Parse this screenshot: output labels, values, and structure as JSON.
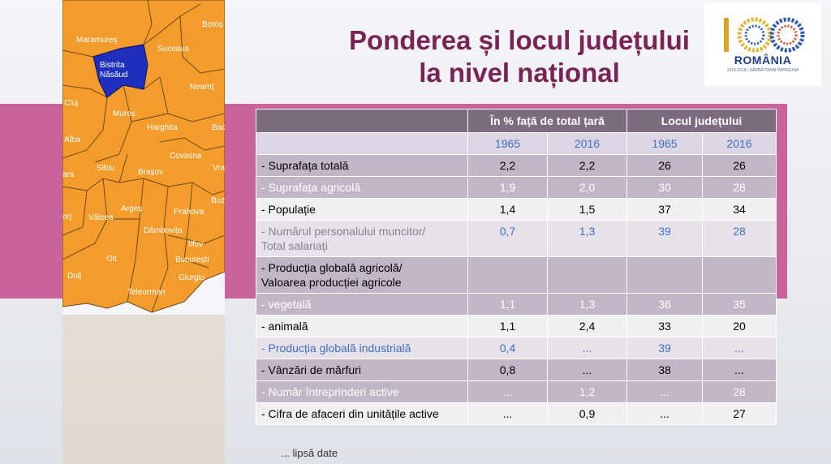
{
  "title": {
    "line1": "Ponderea și locul județului",
    "line2": "la nivel național"
  },
  "logo": {
    "number": "100",
    "country": "ROMÂNIA",
    "tagline": "1918-2018 | SĂRBĂTORIM ÎMPREUNĂ"
  },
  "map": {
    "highlight_label_1": "Bistrita",
    "highlight_label_2": "Năsăud",
    "labels": [
      "Botoș",
      "Maramureș",
      "Suceava",
      "Neamț",
      "Cluj",
      "Harghita",
      "Bac",
      "Mureș",
      "Alba",
      "Covasna",
      "Vra",
      "Sibiu",
      "Brașov",
      "ara",
      "Buz",
      "Argeș",
      "Prahova",
      "orj",
      "Vâlcea",
      "Dâmbovița",
      "Ilfov",
      "Olt",
      "București",
      "Giurgiu",
      "Dolj",
      "Teleorman"
    ],
    "fill_color": "#f39b2b",
    "highlight_color": "#1e2fbe"
  },
  "table": {
    "header": {
      "group1": "În % față de total țară",
      "group2": "Locul județului"
    },
    "years": [
      "1965",
      "2016",
      "1965",
      "2016"
    ],
    "rows": [
      {
        "label": "- Suprafața totală",
        "values": [
          "2,2",
          "2,2",
          "26",
          "26"
        ]
      },
      {
        "label": "- Suprafața agricolă",
        "values": [
          "1,9",
          "2,0",
          "30",
          "28"
        ]
      },
      {
        "label": "- Populație",
        "values": [
          "1,4",
          "1,5",
          "37",
          "34"
        ]
      },
      {
        "label1": "- Numărul personalului muncitor/",
        "label2": "Total salariați",
        "values": [
          "0,7",
          "1,3",
          "39",
          "28"
        ]
      },
      {
        "label1": "- Producția globală agricolă/",
        "label2": "Valoarea producției agricole",
        "values": [
          "",
          "",
          "",
          ""
        ]
      },
      {
        "label": "- vegetală",
        "values": [
          "1,1",
          "1,3",
          "36",
          "35"
        ]
      },
      {
        "label": "- animală",
        "values": [
          "1,1",
          "2,4",
          "33",
          "20"
        ]
      },
      {
        "label": "- Producția globală industrială",
        "values": [
          "0,4",
          "...",
          "39",
          "..."
        ]
      },
      {
        "label": "- Vânzări de mărfuri",
        "values": [
          "0,8",
          "...",
          "38",
          "..."
        ]
      },
      {
        "label": "- Număr întreprinderi active",
        "values": [
          "...",
          "1,2",
          "...",
          "28"
        ]
      },
      {
        "label": "- Cifra de afaceri din unitățile active",
        "values": [
          "...",
          "0,9",
          "...",
          "27"
        ]
      }
    ]
  },
  "footnote": "... lipsă date"
}
